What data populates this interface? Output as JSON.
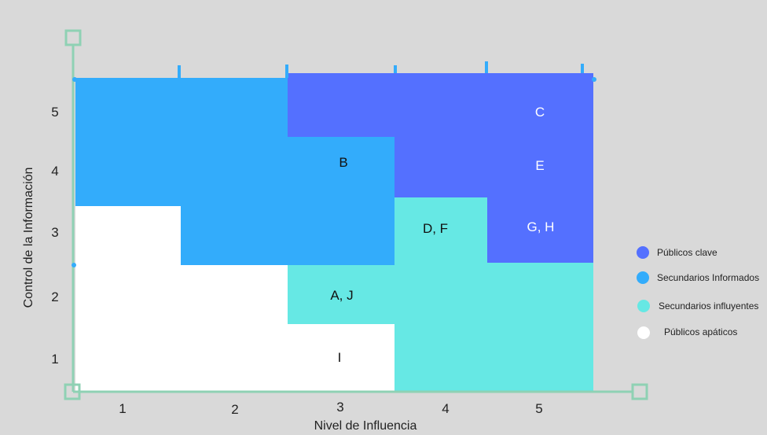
{
  "x_axis": {
    "title": "Nivel de Influencia",
    "ticks": [
      "1",
      "2",
      "3",
      "4",
      "5"
    ]
  },
  "y_axis": {
    "title": "Control de la Información",
    "ticks": [
      "1",
      "2",
      "3",
      "4",
      "5"
    ]
  },
  "regions": [
    {
      "name": "Públicos clave",
      "color": "#5470ff"
    },
    {
      "name": "Secundarios Informados",
      "color": "#33acfb"
    },
    {
      "name": "Secundarios influyentes",
      "color": "#66e8e4"
    },
    {
      "name": "Públicos apáticos",
      "color": "#ffffff"
    }
  ],
  "cells": [
    {
      "text": "C",
      "x": 5,
      "y": 5,
      "color": "#ffffff"
    },
    {
      "text": "E",
      "x": 5,
      "y": 4,
      "color": "#ffffff"
    },
    {
      "text": "G, H",
      "x": 5,
      "y": 3,
      "color": "#ffffff"
    },
    {
      "text": "B",
      "x": 3,
      "y": 4,
      "color": "#111111"
    },
    {
      "text": "D, F",
      "x": 4,
      "y": 3,
      "color": "#111111"
    },
    {
      "text": "A, J",
      "x": 3,
      "y": 2,
      "color": "#111111"
    },
    {
      "text": "I",
      "x": 3,
      "y": 1,
      "color": "#111111"
    }
  ],
  "legend": [
    {
      "label": "Públicos clave",
      "color": "#5470ff"
    },
    {
      "label": "Secundarios Informados",
      "color": "#33acfb"
    },
    {
      "label": "Secundarios influyentes",
      "color": "#66e8e4"
    },
    {
      "label": "Públicos apáticos",
      "color": "#ffffff"
    }
  ],
  "frame_color": "#8fd1b4"
}
